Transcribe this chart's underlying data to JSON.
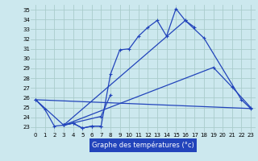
{
  "title": "Graphe des températures (°c)",
  "bg_color": "#cce8ee",
  "grid_color": "#aacccc",
  "line_color": "#2244bb",
  "xlim": [
    -0.5,
    23.5
  ],
  "ylim": [
    22.5,
    35.5
  ],
  "yticks": [
    23,
    24,
    25,
    26,
    27,
    28,
    29,
    30,
    31,
    32,
    33,
    34,
    35
  ],
  "xticks": [
    0,
    1,
    2,
    3,
    4,
    5,
    6,
    7,
    8,
    9,
    10,
    11,
    12,
    13,
    14,
    15,
    16,
    17,
    18,
    19,
    20,
    21,
    22,
    23
  ],
  "curve1_x": [
    0,
    1,
    2,
    3,
    4,
    5,
    6,
    7,
    8,
    9,
    10,
    11,
    12,
    13,
    14,
    15,
    16,
    17
  ],
  "curve1_y": [
    25.8,
    24.8,
    23.1,
    23.2,
    23.4,
    22.9,
    23.1,
    23.1,
    28.4,
    30.9,
    31.0,
    32.3,
    33.2,
    33.9,
    32.3,
    35.1,
    33.9,
    33.2
  ],
  "curve2_x": [
    0,
    3,
    19,
    21,
    23
  ],
  "curve2_y": [
    25.8,
    23.2,
    29.1,
    27.1,
    25.0
  ],
  "curve3_x": [
    3,
    7,
    8
  ],
  "curve3_y": [
    23.2,
    24.1,
    26.3
  ],
  "curve4_x": [
    3,
    4,
    5,
    6,
    7
  ],
  "curve4_y": [
    23.2,
    23.4,
    22.9,
    23.1,
    23.1
  ],
  "curve5_x": [
    0,
    23
  ],
  "curve5_y": [
    25.8,
    24.9
  ],
  "curve6_x": [
    3,
    16,
    18,
    22,
    23
  ],
  "curve6_y": [
    23.2,
    33.9,
    32.1,
    25.8,
    24.9
  ],
  "xlabel_text": "Graphe des températures (°c)",
  "xlabel_bg": "#2244bb",
  "xlabel_fg": "#ffffff"
}
